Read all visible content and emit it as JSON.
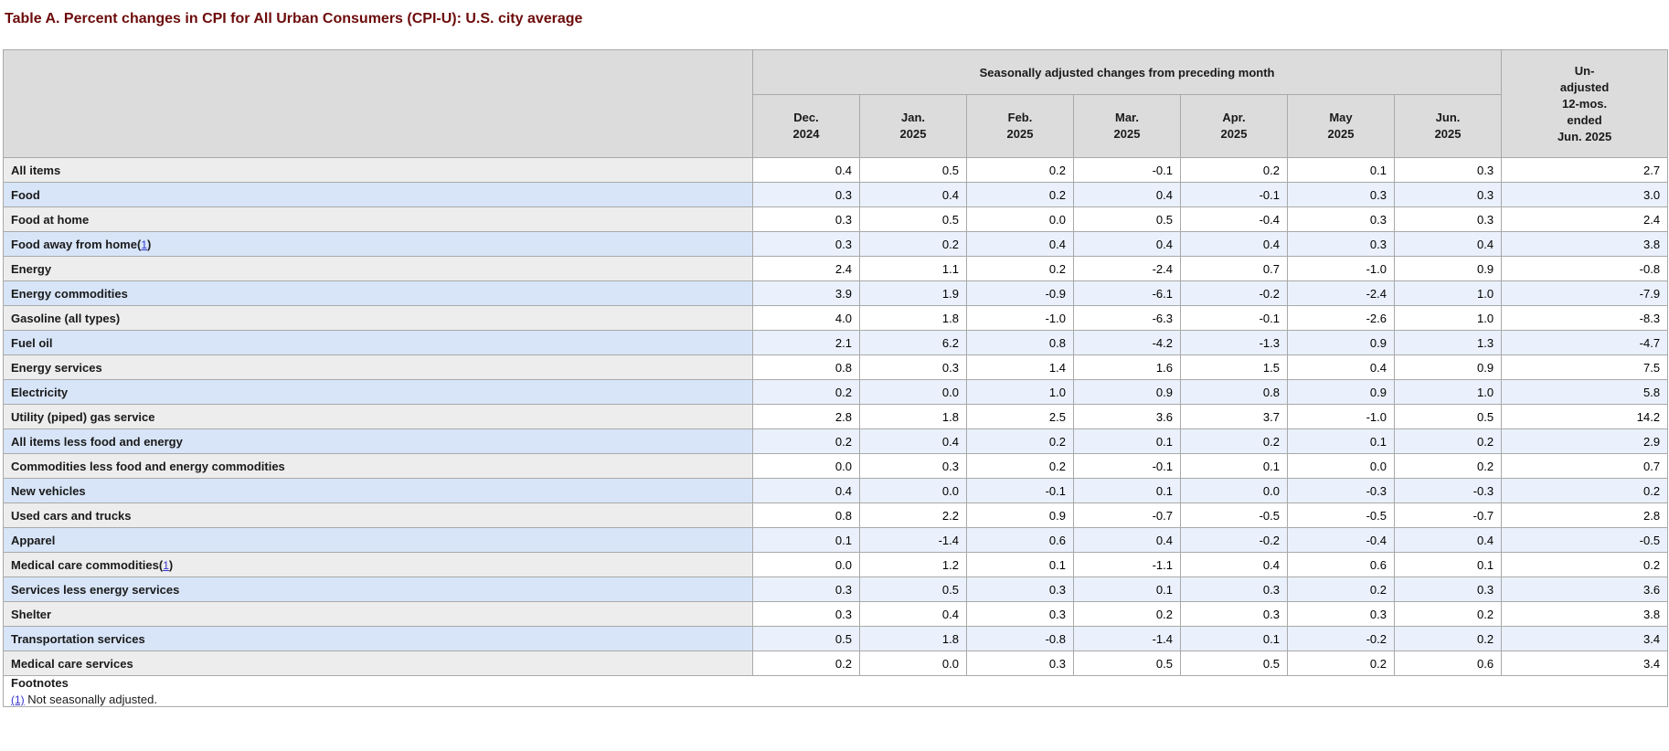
{
  "page": {
    "title": "Table A. Percent changes in CPI for All Urban Consumers (CPI-U): U.S. city average"
  },
  "colors": {
    "title_text": "#6d0b0b",
    "header_bg": "#dcdcdc",
    "grey_row_label_bg": "#ededed",
    "grey_row_data_bg": "#ffffff",
    "blue_row_label_bg": "#d8e5f8",
    "blue_row_data_bg": "#eaf1fc",
    "border": "#a9a9a9",
    "link": "#3333cc"
  },
  "table": {
    "group_header": "Seasonally adjusted changes from preceding month",
    "unadjusted_header": "Un-\nadjusted\n12-mos.\nended\nJun. 2025",
    "columns": [
      "Dec.\n2024",
      "Jan.\n2025",
      "Feb.\n2025",
      "Mar.\n2025",
      "Apr.\n2025",
      "May\n2025",
      "Jun.\n2025"
    ],
    "rows": [
      {
        "label": "All items",
        "indent": 0,
        "footnote": null,
        "values": [
          "0.4",
          "0.5",
          "0.2",
          "-0.1",
          "0.2",
          "0.1",
          "0.3",
          "2.7"
        ]
      },
      {
        "label": "Food",
        "indent": 1,
        "footnote": null,
        "values": [
          "0.3",
          "0.4",
          "0.2",
          "0.4",
          "-0.1",
          "0.3",
          "0.3",
          "3.0"
        ]
      },
      {
        "label": "Food at home",
        "indent": 2,
        "footnote": null,
        "values": [
          "0.3",
          "0.5",
          "0.0",
          "0.5",
          "-0.4",
          "0.3",
          "0.3",
          "2.4"
        ]
      },
      {
        "label": "Food away from home",
        "indent": 2,
        "footnote": "1",
        "values": [
          "0.3",
          "0.2",
          "0.4",
          "0.4",
          "0.4",
          "0.3",
          "0.4",
          "3.8"
        ]
      },
      {
        "label": "Energy",
        "indent": 1,
        "footnote": null,
        "values": [
          "2.4",
          "1.1",
          "0.2",
          "-2.4",
          "0.7",
          "-1.0",
          "0.9",
          "-0.8"
        ]
      },
      {
        "label": "Energy commodities",
        "indent": 2,
        "footnote": null,
        "values": [
          "3.9",
          "1.9",
          "-0.9",
          "-6.1",
          "-0.2",
          "-2.4",
          "1.0",
          "-7.9"
        ]
      },
      {
        "label": "Gasoline (all types)",
        "indent": 3,
        "footnote": null,
        "values": [
          "4.0",
          "1.8",
          "-1.0",
          "-6.3",
          "-0.1",
          "-2.6",
          "1.0",
          "-8.3"
        ]
      },
      {
        "label": "Fuel oil",
        "indent": 3,
        "footnote": null,
        "values": [
          "2.1",
          "6.2",
          "0.8",
          "-4.2",
          "-1.3",
          "0.9",
          "1.3",
          "-4.7"
        ]
      },
      {
        "label": "Energy services",
        "indent": 2,
        "footnote": null,
        "values": [
          "0.8",
          "0.3",
          "1.4",
          "1.6",
          "1.5",
          "0.4",
          "0.9",
          "7.5"
        ]
      },
      {
        "label": "Electricity",
        "indent": 3,
        "footnote": null,
        "values": [
          "0.2",
          "0.0",
          "1.0",
          "0.9",
          "0.8",
          "0.9",
          "1.0",
          "5.8"
        ]
      },
      {
        "label": "Utility (piped) gas service",
        "indent": 3,
        "footnote": null,
        "values": [
          "2.8",
          "1.8",
          "2.5",
          "3.6",
          "3.7",
          "-1.0",
          "0.5",
          "14.2"
        ]
      },
      {
        "label": "All items less food and energy",
        "indent": 1,
        "footnote": null,
        "values": [
          "0.2",
          "0.4",
          "0.2",
          "0.1",
          "0.2",
          "0.1",
          "0.2",
          "2.9"
        ]
      },
      {
        "label": "Commodities less food and energy commodities",
        "indent": 2,
        "footnote": null,
        "values": [
          "0.0",
          "0.3",
          "0.2",
          "-0.1",
          "0.1",
          "0.0",
          "0.2",
          "0.7"
        ]
      },
      {
        "label": "New vehicles",
        "indent": 3,
        "footnote": null,
        "values": [
          "0.4",
          "0.0",
          "-0.1",
          "0.1",
          "0.0",
          "-0.3",
          "-0.3",
          "0.2"
        ]
      },
      {
        "label": "Used cars and trucks",
        "indent": 3,
        "footnote": null,
        "values": [
          "0.8",
          "2.2",
          "0.9",
          "-0.7",
          "-0.5",
          "-0.5",
          "-0.7",
          "2.8"
        ]
      },
      {
        "label": "Apparel",
        "indent": 3,
        "footnote": null,
        "values": [
          "0.1",
          "-1.4",
          "0.6",
          "0.4",
          "-0.2",
          "-0.4",
          "0.4",
          "-0.5"
        ]
      },
      {
        "label": "Medical care commodities",
        "indent": 3,
        "footnote": "1",
        "values": [
          "0.0",
          "1.2",
          "0.1",
          "-1.1",
          "0.4",
          "0.6",
          "0.1",
          "0.2"
        ]
      },
      {
        "label": "Services less energy services",
        "indent": 2,
        "footnote": null,
        "values": [
          "0.3",
          "0.5",
          "0.3",
          "0.1",
          "0.3",
          "0.2",
          "0.3",
          "3.6"
        ]
      },
      {
        "label": "Shelter",
        "indent": 3,
        "footnote": null,
        "values": [
          "0.3",
          "0.4",
          "0.3",
          "0.2",
          "0.3",
          "0.3",
          "0.2",
          "3.8"
        ]
      },
      {
        "label": "Transportation services",
        "indent": 3,
        "footnote": null,
        "values": [
          "0.5",
          "1.8",
          "-0.8",
          "-1.4",
          "0.1",
          "-0.2",
          "0.2",
          "3.4"
        ]
      },
      {
        "label": "Medical care services",
        "indent": 3,
        "footnote": null,
        "values": [
          "0.2",
          "0.0",
          "0.3",
          "0.5",
          "0.5",
          "0.2",
          "0.6",
          "3.4"
        ]
      }
    ],
    "footnotes": {
      "heading": "Footnotes",
      "items": [
        {
          "link": "(1)",
          "text": "Not seasonally adjusted."
        }
      ]
    }
  }
}
